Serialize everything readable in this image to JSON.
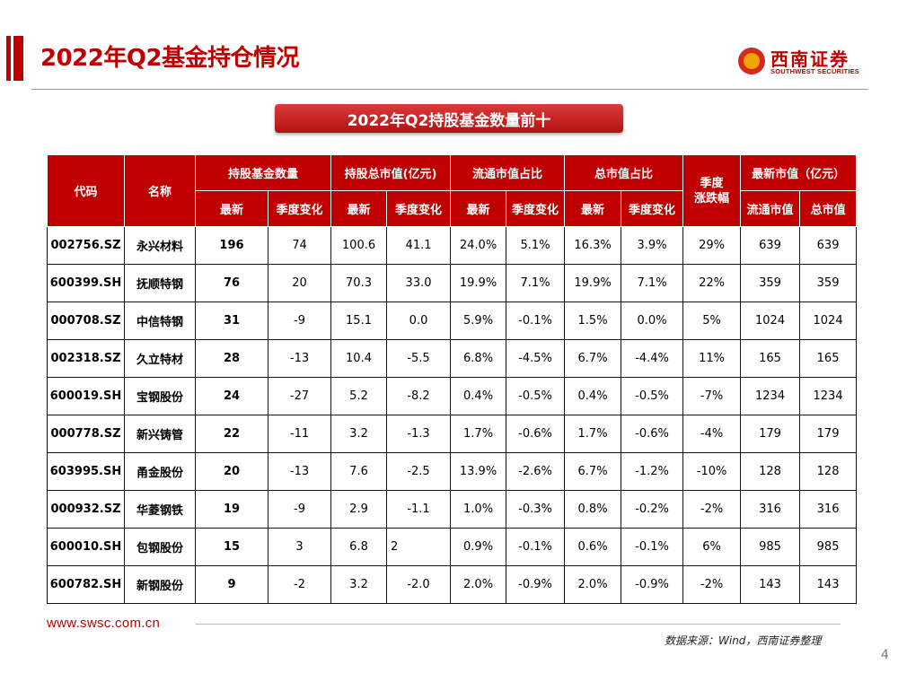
{
  "header": {
    "title": "2022年Q2基金持仓情况",
    "logo_cn": "西南证券",
    "logo_en": "SOUTHWEST SECURITIES"
  },
  "banner": {
    "text": "2022年Q2持股基金数量前十"
  },
  "table": {
    "headers": {
      "code": "代码",
      "name": "名称",
      "fund_count": "持股基金数量",
      "total_mv": "持股总市值(亿元)",
      "float_ratio": "流通市值占比",
      "total_ratio": "总市值占比",
      "quarter_change": "季度\n涨跌幅",
      "market_value": "最新市值（亿元）",
      "latest": "最新",
      "qoq": "季度变化",
      "float_mv": "流通市值",
      "total_mv_short": "总市值"
    },
    "rows": [
      [
        "002756.SZ",
        "永兴材料",
        "196",
        "74",
        "100.6",
        "41.1",
        "24.0%",
        "5.1%",
        "16.3%",
        "3.9%",
        "29%",
        "639",
        "639"
      ],
      [
        "600399.SH",
        "抚顺特钢",
        "76",
        "20",
        "70.3",
        "33.0",
        "19.9%",
        "7.1%",
        "19.9%",
        "7.1%",
        "22%",
        "359",
        "359"
      ],
      [
        "000708.SZ",
        "中信特钢",
        "31",
        "-9",
        "15.1",
        "0.0",
        "5.9%",
        "-0.1%",
        "1.5%",
        "0.0%",
        "5%",
        "1024",
        "1024"
      ],
      [
        "002318.SZ",
        "久立特材",
        "28",
        "-13",
        "10.4",
        "-5.5",
        "6.8%",
        "-4.5%",
        "6.7%",
        "-4.4%",
        "11%",
        "165",
        "165"
      ],
      [
        "600019.SH",
        "宝钢股份",
        "24",
        "-27",
        "5.2",
        "-8.2",
        "0.4%",
        "-0.5%",
        "0.4%",
        "-0.5%",
        "-7%",
        "1234",
        "1234"
      ],
      [
        "000778.SZ",
        "新兴铸管",
        "22",
        "-11",
        "3.2",
        "-1.3",
        "1.7%",
        "-0.6%",
        "1.7%",
        "-0.6%",
        "-4%",
        "179",
        "179"
      ],
      [
        "603995.SH",
        "甬金股份",
        "20",
        "-13",
        "7.6",
        "-2.5",
        "13.9%",
        "-2.6%",
        "6.7%",
        "-1.2%",
        "-10%",
        "128",
        "128"
      ],
      [
        "000932.SZ",
        "华菱钢铁",
        "19",
        "-9",
        "2.9",
        "-1.1",
        "1.0%",
        "-0.3%",
        "0.8%",
        "-0.2%",
        "-2%",
        "316",
        "316"
      ],
      [
        "600010.SH",
        "包钢股份",
        "15",
        "3",
        "6.8",
        "2",
        "0.9%",
        "-0.1%",
        "0.6%",
        "-0.1%",
        "6%",
        "985",
        "985"
      ],
      [
        "600782.SH",
        "新钢股份",
        "9",
        "-2",
        "3.2",
        "-2.0",
        "2.0%",
        "-0.9%",
        "2.0%",
        "-0.9%",
        "-2%",
        "143",
        "143"
      ]
    ]
  },
  "footer": {
    "url": "www.swsc.com.cn",
    "source": "数据来源：Wind，西南证券整理",
    "page": "4"
  },
  "colors": {
    "accent": "#c00000",
    "logo_orange": "#f1a400"
  }
}
